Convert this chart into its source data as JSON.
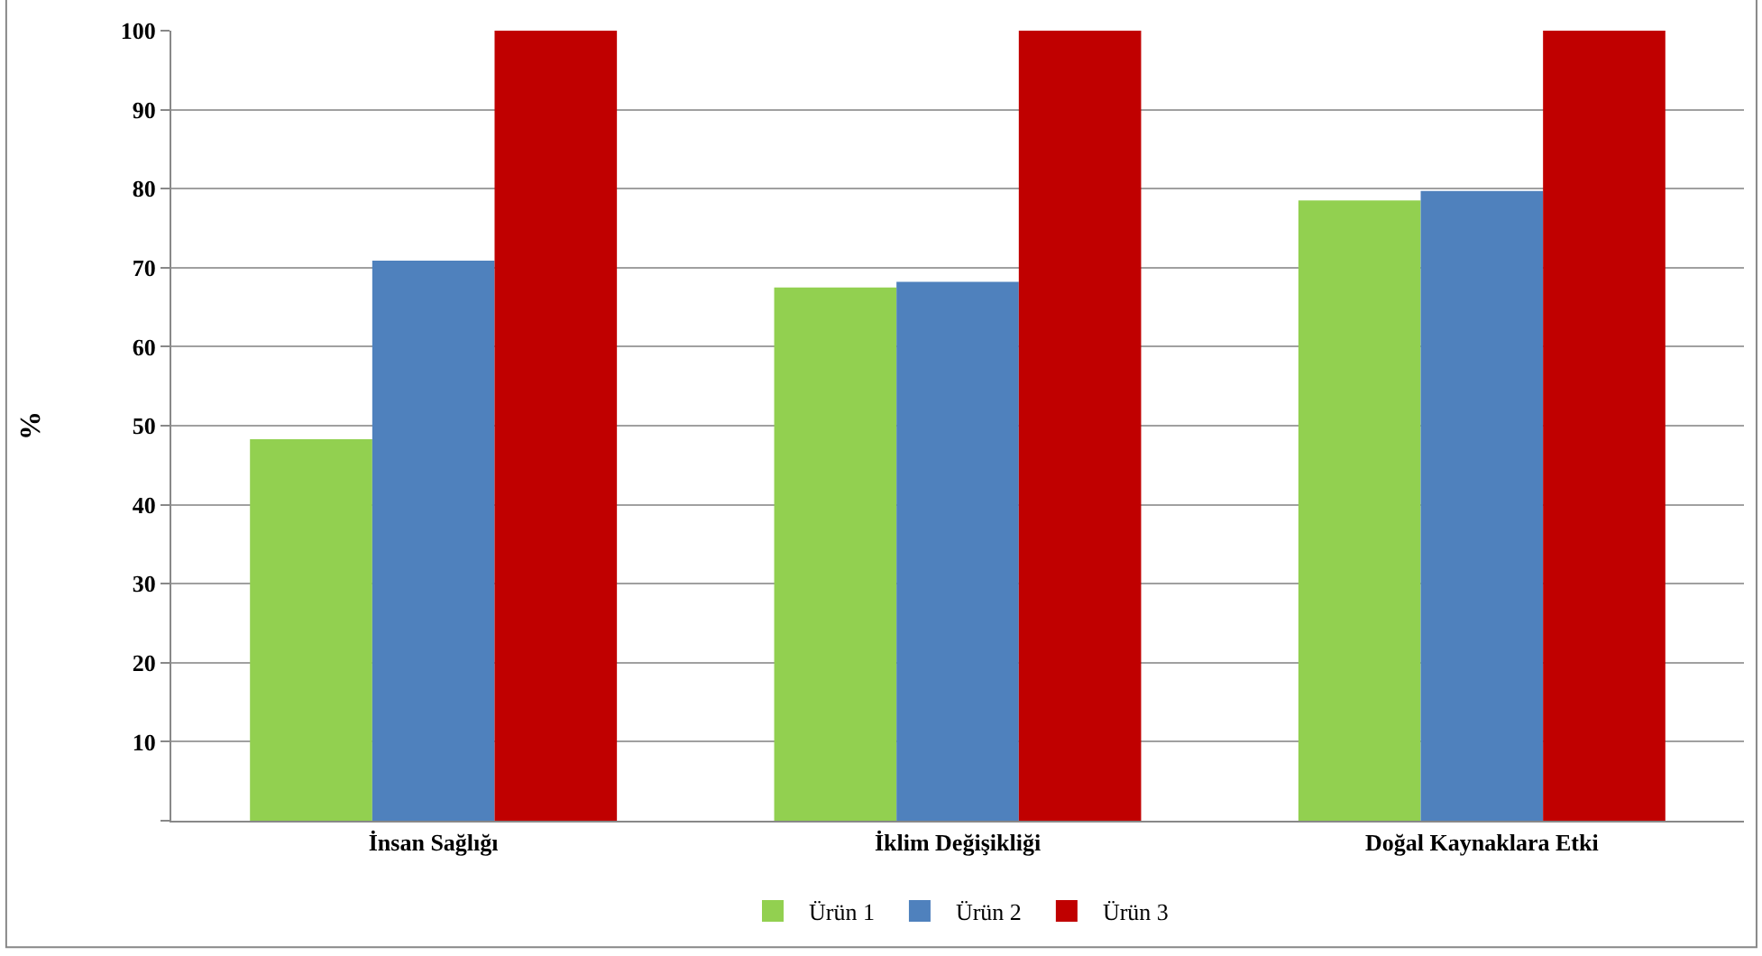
{
  "chart_data": {
    "type": "bar",
    "ylabel": "%",
    "categories": [
      "İnsan Sağlığı",
      "İklim Değişikliği",
      "Doğal Kaynaklara Etki"
    ],
    "series": [
      {
        "name": "Ürün 1",
        "color": "#92d050",
        "values": [
          48.3,
          67.5,
          78.5
        ]
      },
      {
        "name": "Ürün 2",
        "color": "#4f81bd",
        "values": [
          70.9,
          68.2,
          79.7
        ]
      },
      {
        "name": "Ürün 3",
        "color": "#c00000",
        "values": [
          100,
          100,
          100
        ]
      }
    ],
    "ylim": [
      0,
      100
    ],
    "yticks": [
      {
        "value": 0,
        "label": null
      },
      10,
      20,
      30,
      40,
      50,
      60,
      70,
      80,
      90,
      100
    ],
    "grid": "y",
    "legend": "bottom"
  }
}
